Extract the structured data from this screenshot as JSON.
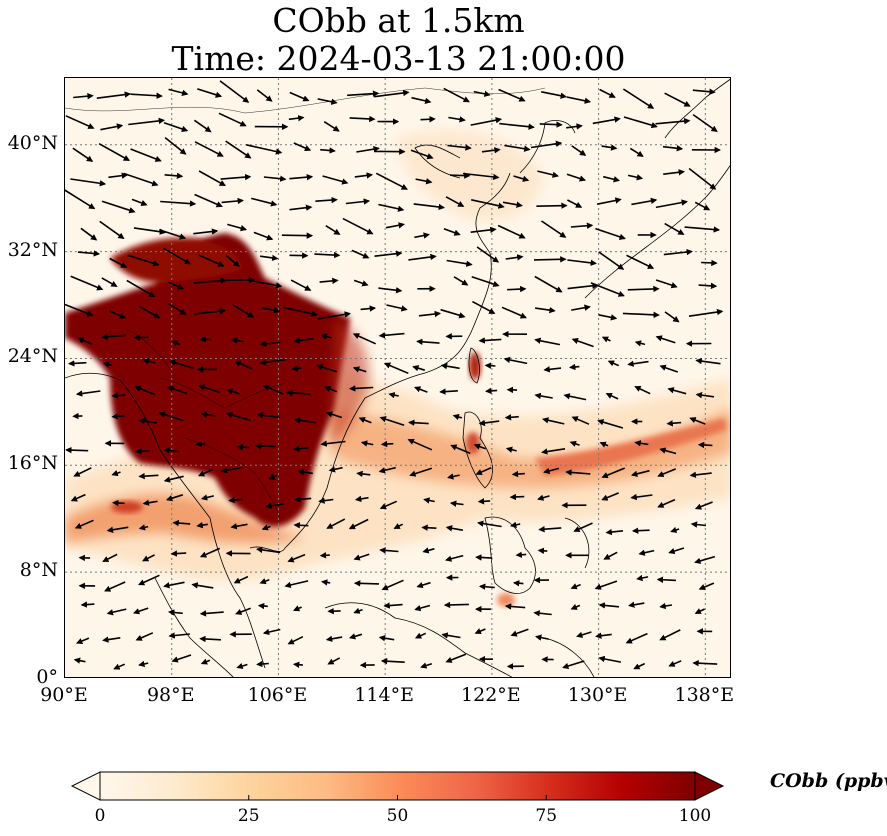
{
  "title": {
    "line1": "CObb at 1.5km",
    "line2": "Time: 2024-03-13 21:00:00"
  },
  "map": {
    "extent_lon": [
      90,
      140
    ],
    "extent_lat": [
      0,
      45
    ],
    "lat_ticks": [
      {
        "value": 40,
        "label": "40°N"
      },
      {
        "value": 32,
        "label": "32°N"
      },
      {
        "value": 24,
        "label": "24°N"
      },
      {
        "value": 16,
        "label": "16°N"
      },
      {
        "value": 8,
        "label": "8°N"
      },
      {
        "value": 0,
        "label": "0°"
      }
    ],
    "lon_ticks": [
      {
        "value": 90,
        "label": "90°E"
      },
      {
        "value": 98,
        "label": "98°E"
      },
      {
        "value": 106,
        "label": "106°E"
      },
      {
        "value": 114,
        "label": "114°E"
      },
      {
        "value": 122,
        "label": "122°E"
      },
      {
        "value": 130,
        "label": "130°E"
      },
      {
        "value": 138,
        "label": "138°E"
      }
    ],
    "gridlines": "dotted",
    "field_name": "CObb",
    "field_units": "ppbv",
    "wind_vectors": "shown",
    "colormap": "OrRd"
  },
  "colorbar": {
    "label": "CObb (ppbv)",
    "min": 0,
    "max": 100,
    "extend": "both",
    "ticks": [
      {
        "value": 0,
        "label": "0"
      },
      {
        "value": 25,
        "label": "25"
      },
      {
        "value": 50,
        "label": "50"
      },
      {
        "value": 75,
        "label": "75"
      },
      {
        "value": 100,
        "label": "100"
      }
    ],
    "colors": [
      "#fff7ec",
      "#fdd49e",
      "#fc8d59",
      "#d7301f",
      "#7f0000"
    ]
  }
}
